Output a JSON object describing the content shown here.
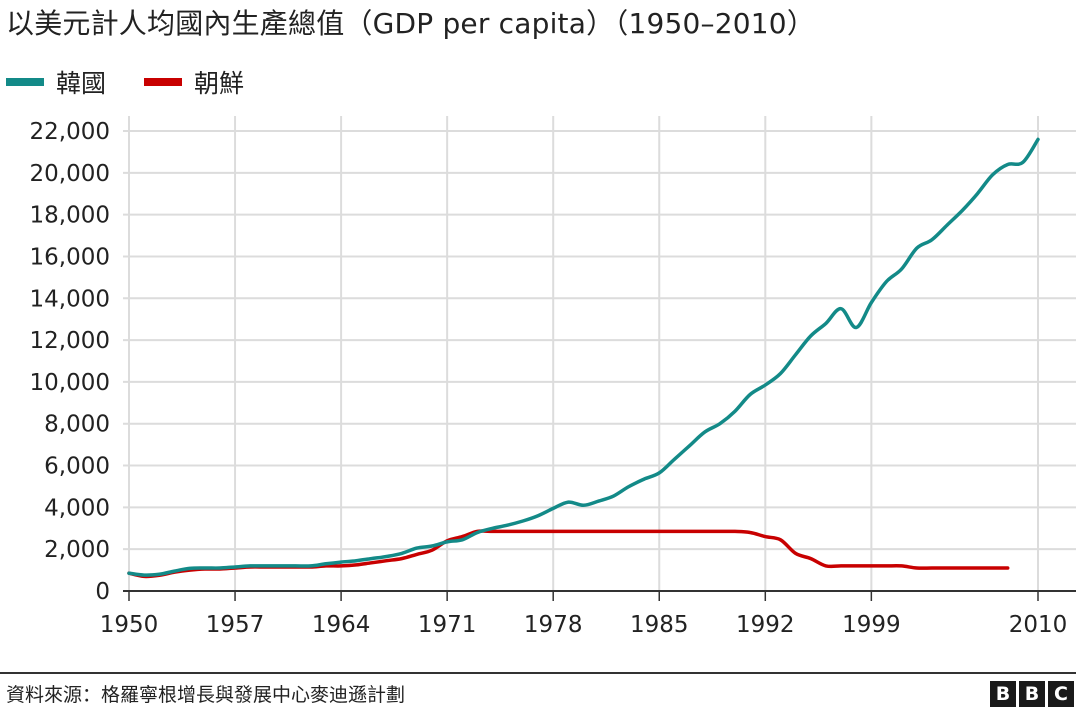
{
  "title": "以美元計人均國內生產總值（GDP per capita）（1950–2010）",
  "legend": [
    {
      "label": "韓國",
      "color": "#138a88"
    },
    {
      "label": "朝鮮",
      "color": "#c80000"
    }
  ],
  "source": "資料來源：格羅寧根增長與發展中心麥迪遜計劃",
  "logo": [
    "B",
    "B",
    "C"
  ],
  "chart_data": {
    "type": "line",
    "title": "以美元計人均國內生產總值（GDP per capita）（1950–2010）",
    "xlabel": "",
    "ylabel": "",
    "xlim": [
      1950,
      2010
    ],
    "ylim": [
      0,
      22000
    ],
    "x_ticks": [
      1950,
      1957,
      1964,
      1971,
      1978,
      1985,
      1992,
      1999,
      2010
    ],
    "y_ticks": [
      0,
      2000,
      4000,
      6000,
      8000,
      10000,
      12000,
      14000,
      16000,
      18000,
      20000,
      22000
    ],
    "x_tick_labels": [
      "1950",
      "1957",
      "1964",
      "1971",
      "1978",
      "1985",
      "1992",
      "1999",
      "2010"
    ],
    "y_tick_labels": [
      "0",
      "2,000",
      "4,000",
      "6,000",
      "8,000",
      "10,000",
      "12,000",
      "14,000",
      "16,000",
      "18,000",
      "20,000",
      "22,000"
    ],
    "grid": true,
    "legend_position": "top-left",
    "series": [
      {
        "name": "韓國",
        "color": "#138a88",
        "x": [
          1950,
          1951,
          1952,
          1953,
          1954,
          1955,
          1956,
          1957,
          1958,
          1959,
          1960,
          1961,
          1962,
          1963,
          1964,
          1965,
          1966,
          1967,
          1968,
          1969,
          1970,
          1971,
          1972,
          1973,
          1974,
          1975,
          1976,
          1977,
          1978,
          1979,
          1980,
          1981,
          1982,
          1983,
          1984,
          1985,
          1986,
          1987,
          1988,
          1989,
          1990,
          1991,
          1992,
          1993,
          1994,
          1995,
          1996,
          1997,
          1998,
          1999,
          2000,
          2001,
          2002,
          2003,
          2004,
          2005,
          2006,
          2007,
          2008,
          2009,
          2010
        ],
        "values": [
          850,
          760,
          800,
          950,
          1080,
          1100,
          1100,
          1150,
          1200,
          1200,
          1200,
          1200,
          1200,
          1300,
          1380,
          1450,
          1550,
          1650,
          1800,
          2050,
          2150,
          2350,
          2450,
          2800,
          3000,
          3150,
          3350,
          3600,
          3950,
          4250,
          4100,
          4300,
          4550,
          5000,
          5350,
          5650,
          6300,
          6950,
          7600,
          8000,
          8600,
          9400,
          9850,
          10400,
          11300,
          12200,
          12800,
          13500,
          12600,
          13800,
          14800,
          15400,
          16400,
          16800,
          17500,
          18200,
          19000,
          19900,
          20400,
          20500,
          21600
        ]
      },
      {
        "name": "朝鮮",
        "color": "#c80000",
        "x": [
          1950,
          1951,
          1952,
          1953,
          1954,
          1955,
          1956,
          1957,
          1958,
          1959,
          1960,
          1961,
          1962,
          1963,
          1964,
          1965,
          1966,
          1967,
          1968,
          1969,
          1970,
          1971,
          1972,
          1973,
          1974,
          1975,
          1976,
          1977,
          1978,
          1979,
          1980,
          1981,
          1982,
          1983,
          1984,
          1985,
          1986,
          1987,
          1988,
          1989,
          1990,
          1991,
          1992,
          1993,
          1994,
          1995,
          1996,
          1997,
          1998,
          1999,
          2000,
          2001,
          2002,
          2003,
          2004,
          2005,
          2006,
          2007,
          2008
        ],
        "values": [
          850,
          700,
          750,
          900,
          1000,
          1050,
          1050,
          1100,
          1150,
          1150,
          1150,
          1150,
          1150,
          1200,
          1200,
          1250,
          1350,
          1450,
          1550,
          1750,
          1950,
          2400,
          2600,
          2850,
          2850,
          2850,
          2850,
          2850,
          2850,
          2850,
          2850,
          2850,
          2850,
          2850,
          2850,
          2850,
          2850,
          2850,
          2850,
          2850,
          2850,
          2800,
          2600,
          2450,
          1800,
          1550,
          1200,
          1200,
          1200,
          1200,
          1200,
          1200,
          1100,
          1100,
          1100,
          1100,
          1100,
          1100,
          1100
        ]
      }
    ]
  }
}
